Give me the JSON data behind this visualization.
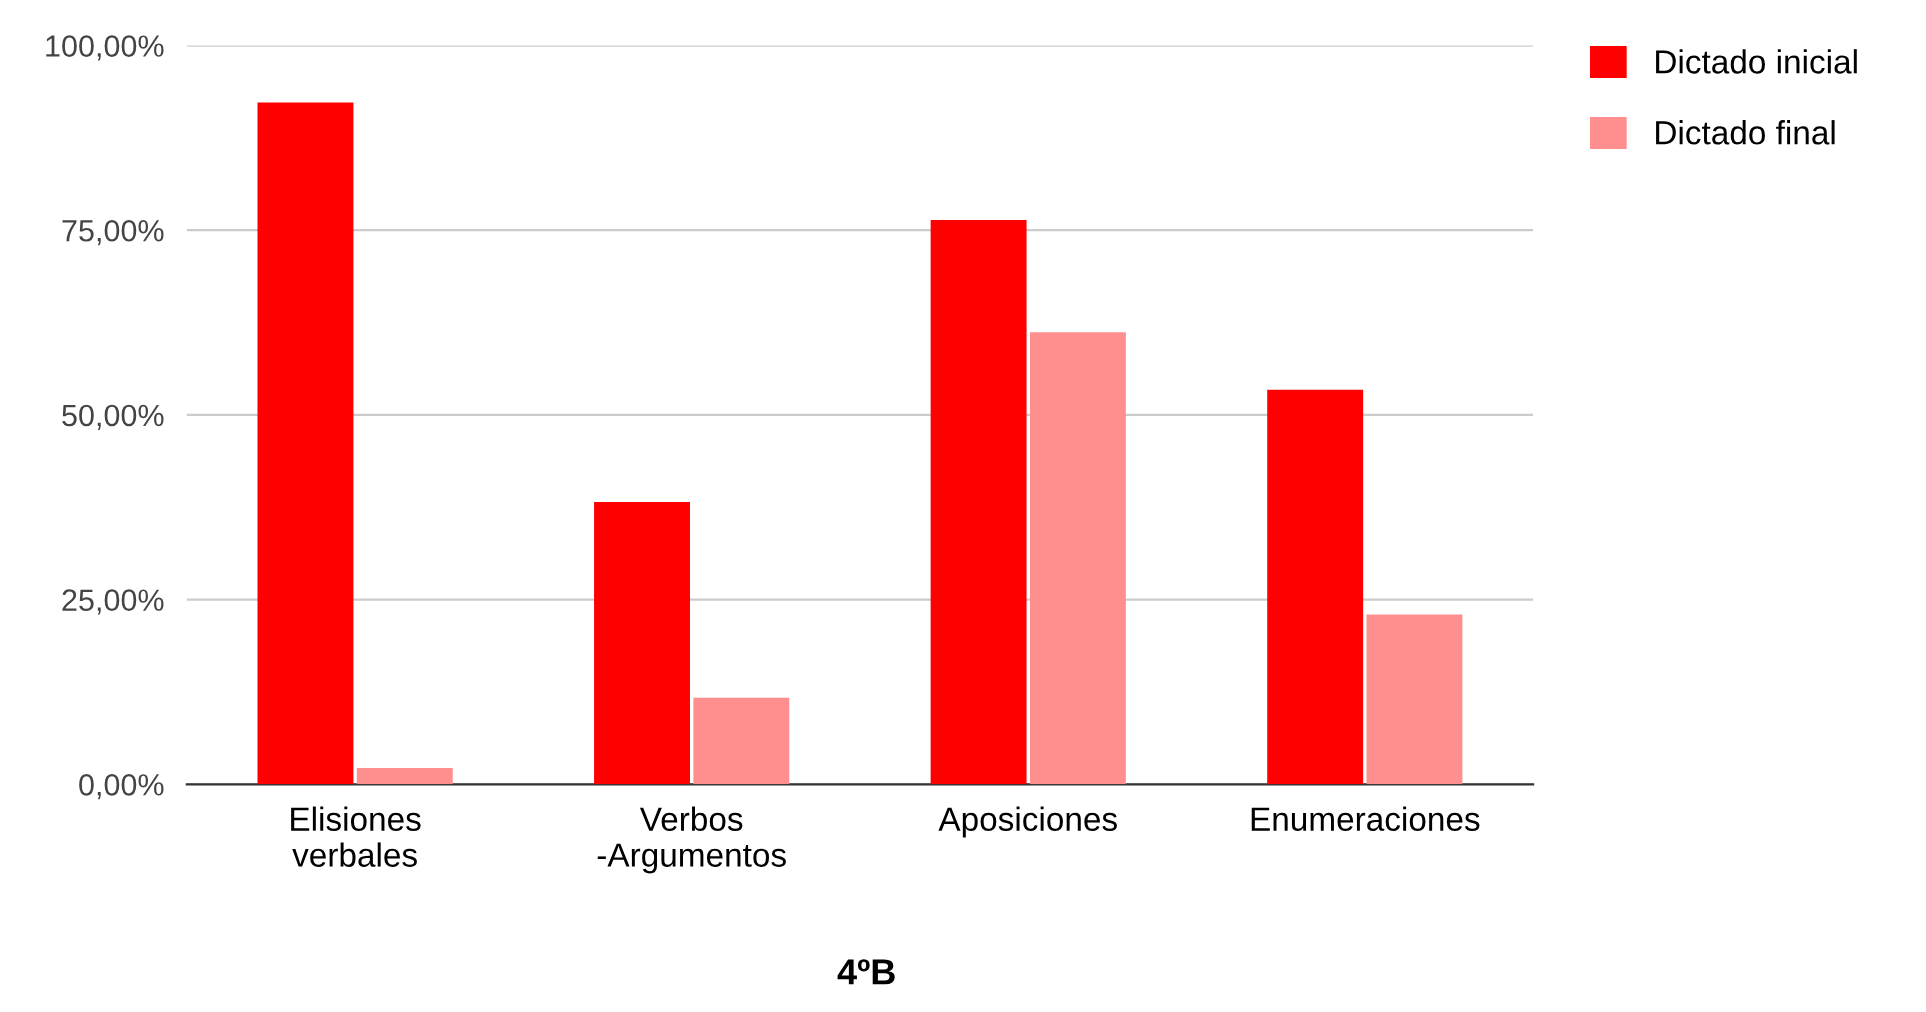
{
  "chart_data": {
    "type": "bar",
    "title": "4ºB",
    "categories": [
      "Elisiones\nverbales",
      "Verbos\n-Argumentos",
      "Aposiciones",
      "Enumeraciones"
    ],
    "series": [
      {
        "name": "Dictado inicial",
        "color": "#ff0000",
        "values": [
          92.3,
          38.2,
          76.4,
          53.4
        ]
      },
      {
        "name": "Dictado final",
        "color": "#ff8f8f",
        "values": [
          2.2,
          11.7,
          61.2,
          23.0
        ]
      }
    ],
    "ylim": [
      0,
      100
    ],
    "yticks": [
      {
        "value": 0,
        "label": "0,00%"
      },
      {
        "value": 25,
        "label": "25,00%"
      },
      {
        "value": 50,
        "label": "50,00%"
      },
      {
        "value": 75,
        "label": "75,00%"
      },
      {
        "value": 100,
        "label": "100,00%"
      }
    ],
    "grid": "y",
    "legend": "top right"
  }
}
